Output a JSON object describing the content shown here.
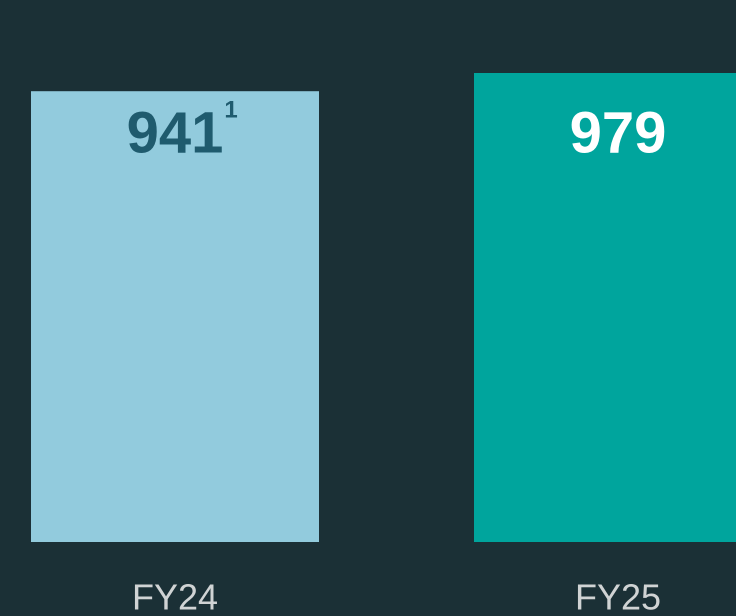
{
  "chart_data": {
    "type": "bar",
    "categories": [
      "FY24",
      "FY25"
    ],
    "values": [
      941,
      979
    ],
    "value_notes": [
      "1",
      null
    ],
    "colors": [
      "#92cbdd",
      "#00a59d"
    ],
    "label_colors": [
      "#1f5b6e",
      "#ffffff"
    ]
  }
}
